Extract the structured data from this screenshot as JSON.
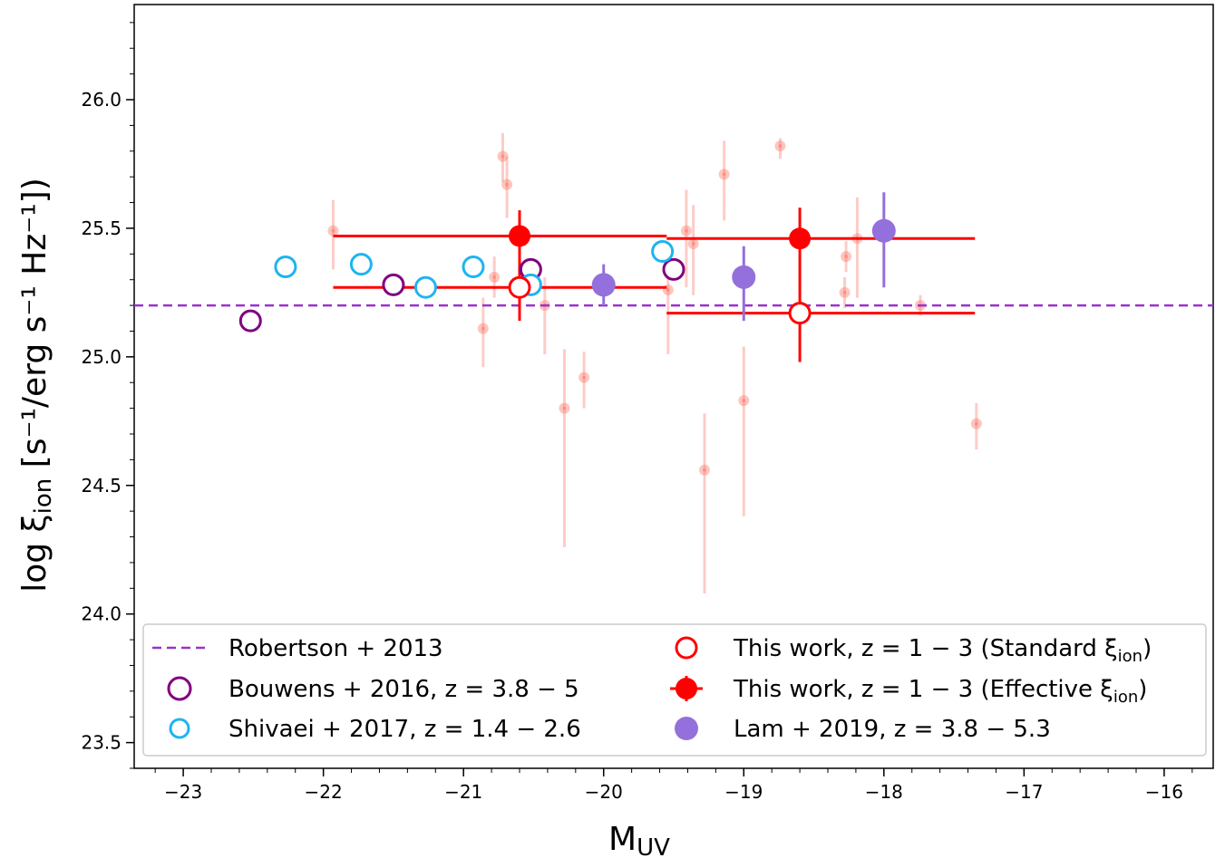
{
  "chart_data": {
    "type": "scatter",
    "xlabel": "M",
    "xlabel_sub": "UV",
    "ylabel_prefix": "log ξ",
    "ylabel_sub": "ion",
    "ylabel_suffix": " [s⁻¹/erg s⁻¹ Hz⁻¹])",
    "xlim": [
      -23.35,
      -15.65
    ],
    "ylim": [
      23.4,
      26.37
    ],
    "x_ticks": [
      -23,
      -22,
      -21,
      -20,
      -19,
      -18,
      -17,
      -16
    ],
    "x_tick_labels": [
      "−23",
      "−22",
      "−21",
      "−20",
      "−19",
      "−18",
      "−17",
      "−16"
    ],
    "y_ticks": [
      23.5,
      24.0,
      24.5,
      25.0,
      25.5,
      26.0
    ],
    "y_tick_labels": [
      "23.5",
      "24.0",
      "24.5",
      "25.0",
      "25.5",
      "26.0"
    ],
    "legend_position": "lower center",
    "colors": {
      "robertson": "#9932CC",
      "bouwens": "#800080",
      "shivaei": "#1EB4F0",
      "this_work": "#FF0000",
      "lam": "#9370DB",
      "individual": "#FA8072"
    },
    "series": [
      {
        "name": "Robertson + 2013",
        "kind": "hline",
        "y": 25.2,
        "color": "#9932CC"
      },
      {
        "name": "Bouwens + 2016,  z = 3.8 − 5",
        "kind": "open",
        "color": "#800080",
        "points": [
          {
            "x": -22.52,
            "y": 25.14
          },
          {
            "x": -21.5,
            "y": 25.28
          },
          {
            "x": -20.52,
            "y": 25.34
          },
          {
            "x": -19.5,
            "y": 25.34
          }
        ]
      },
      {
        "name": "Shivaei + 2017,  z = 1.4 − 2.6",
        "kind": "open",
        "color": "#1EB4F0",
        "points": [
          {
            "x": -22.27,
            "y": 25.35
          },
          {
            "x": -21.73,
            "y": 25.36
          },
          {
            "x": -21.27,
            "y": 25.27
          },
          {
            "x": -20.93,
            "y": 25.35
          },
          {
            "x": -20.52,
            "y": 25.28
          },
          {
            "x": -19.58,
            "y": 25.41
          }
        ]
      },
      {
        "name": "This work,  z = 1 − 3 (Standard ξ",
        "name_sub": "ion",
        "name_end": ")",
        "kind": "open",
        "color": "#FF0000",
        "points": [
          {
            "x": -20.6,
            "y": 25.27,
            "xlo": -21.93,
            "xhi": -19.55,
            "ylo": 25.27,
            "yhi": 25.27
          },
          {
            "x": -18.6,
            "y": 25.17,
            "xlo": -19.55,
            "xhi": -17.35,
            "ylo": 24.98,
            "yhi": 25.17
          }
        ]
      },
      {
        "name": "This work,  z = 1 − 3 (Effective ξ",
        "name_sub": "ion",
        "name_end": ")",
        "kind": "filled",
        "color": "#FF0000",
        "points": [
          {
            "x": -20.6,
            "y": 25.47,
            "xlo": -21.93,
            "xhi": -19.55,
            "ylo": 25.14,
            "yhi": 25.57
          },
          {
            "x": -18.6,
            "y": 25.46,
            "xlo": -19.55,
            "xhi": -17.35,
            "ylo": 25.17,
            "yhi": 25.58
          }
        ]
      },
      {
        "name": "Lam + 2019,  z = 3.8 − 5.3",
        "kind": "filled",
        "color": "#9370DB",
        "points": [
          {
            "x": -20.0,
            "y": 25.28,
            "ylo": 25.2,
            "yhi": 25.36
          },
          {
            "x": -19.0,
            "y": 25.31,
            "ylo": 25.14,
            "yhi": 25.43
          },
          {
            "x": -18.0,
            "y": 25.49,
            "ylo": 25.27,
            "yhi": 25.64
          }
        ]
      },
      {
        "kind": "individual",
        "color": "#FA8072",
        "points": [
          {
            "x": -21.93,
            "y": 25.49,
            "ylo": 25.34,
            "yhi": 25.61
          },
          {
            "x": -20.72,
            "y": 25.78,
            "ylo": 25.68,
            "yhi": 25.87
          },
          {
            "x": -20.69,
            "y": 25.67,
            "ylo": 25.54,
            "yhi": 25.78
          },
          {
            "x": -20.78,
            "y": 25.31,
            "ylo": 25.23,
            "yhi": 25.39
          },
          {
            "x": -20.86,
            "y": 25.11,
            "ylo": 24.96,
            "yhi": 25.23
          },
          {
            "x": -20.42,
            "y": 25.2,
            "ylo": 25.01,
            "yhi": 25.31
          },
          {
            "x": -20.28,
            "y": 24.8,
            "ylo": 24.26,
            "yhi": 25.03
          },
          {
            "x": -20.14,
            "y": 24.92,
            "ylo": 24.8,
            "yhi": 25.02
          },
          {
            "x": -19.54,
            "y": 25.26,
            "ylo": 25.01,
            "yhi": 25.43
          },
          {
            "x": -19.41,
            "y": 25.49,
            "ylo": 25.27,
            "yhi": 25.65
          },
          {
            "x": -19.36,
            "y": 25.44,
            "ylo": 25.24,
            "yhi": 25.59
          },
          {
            "x": -19.28,
            "y": 24.56,
            "ylo": 24.08,
            "yhi": 24.78
          },
          {
            "x": -19.14,
            "y": 25.71,
            "ylo": 25.53,
            "yhi": 25.84
          },
          {
            "x": -19.0,
            "y": 24.83,
            "ylo": 24.38,
            "yhi": 25.04
          },
          {
            "x": -18.74,
            "y": 25.82,
            "ylo": 25.77,
            "yhi": 25.85
          },
          {
            "x": -18.28,
            "y": 25.25,
            "ylo": 25.19,
            "yhi": 25.31
          },
          {
            "x": -18.27,
            "y": 25.39,
            "ylo": 25.33,
            "yhi": 25.45
          },
          {
            "x": -18.19,
            "y": 25.46,
            "ylo": 25.23,
            "yhi": 25.62
          },
          {
            "x": -17.74,
            "y": 25.2,
            "ylo": 25.16,
            "yhi": 25.24
          },
          {
            "x": -17.34,
            "y": 24.74,
            "ylo": 24.64,
            "yhi": 24.82
          }
        ]
      }
    ]
  }
}
